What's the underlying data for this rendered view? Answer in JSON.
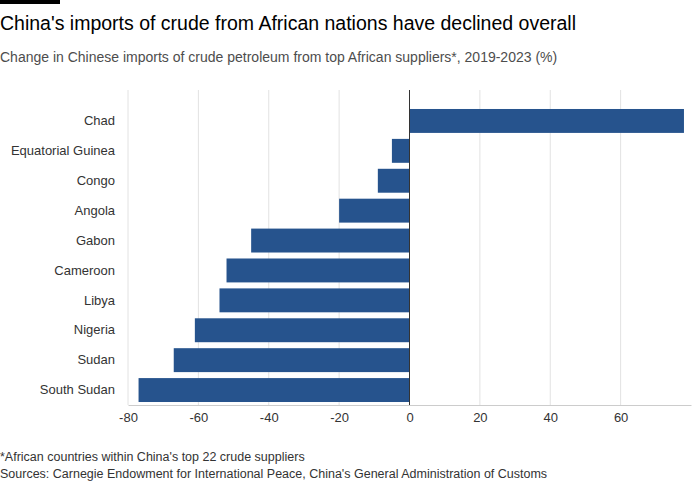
{
  "chart_data": {
    "type": "bar",
    "orientation": "horizontal",
    "title": "China's imports of crude from African nations have declined overall",
    "subtitle": "Change in Chinese imports of crude petroleum from top African suppliers*, 2019-2023 (%)",
    "categories": [
      "Chad",
      "Equatorial Guinea",
      "Congo",
      "Angola",
      "Gabon",
      "Cameroon",
      "Libya",
      "Nigeria",
      "Sudan",
      "South Sudan"
    ],
    "values": [
      78,
      -5,
      -9,
      -20,
      -45,
      -52,
      -54,
      -61,
      -67,
      -77
    ],
    "color": "#26538d",
    "xlim": [
      -80,
      80
    ],
    "xticks": [
      -80,
      -60,
      -40,
      -20,
      0,
      20,
      40,
      60
    ],
    "grid": true,
    "footnote": "*African countries within China's top 22 crude suppliers",
    "source": "Sources: Carnegie Endowment for International Peace, China's General Administration of Customs"
  }
}
